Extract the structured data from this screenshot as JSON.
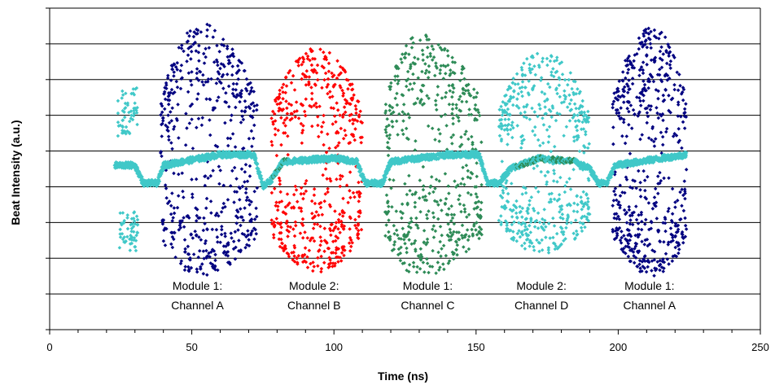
{
  "chart_data": {
    "type": "scatter",
    "title": "",
    "xlabel": "Time (ns)",
    "ylabel": "Beat Intensity (a.u.)",
    "xlim": [
      0,
      250
    ],
    "ylim": [
      0,
      9
    ],
    "x_ticks": [
      "0",
      "50",
      "100",
      "150",
      "200",
      "250"
    ],
    "x_tick_values": [
      0,
      50,
      100,
      150,
      200,
      250
    ],
    "y_tick_labels_shown": false,
    "grid": "horizontal",
    "legend": "none",
    "colors": {
      "channel_a": "#000080",
      "channel_b": "#ff0000",
      "channel_c": "#2e8b57",
      "channel_d": "#40c8c8",
      "beat_trace": "#40c8c8"
    },
    "bursts": [
      {
        "channel": "Channel D",
        "color": "#40c8c8",
        "x_range": [
          24,
          31
        ],
        "y_range": [
          2.2,
          7.2
        ]
      },
      {
        "channel": "Channel A",
        "color": "#000080",
        "x_range": [
          39,
          73
        ],
        "y_range": [
          1.5,
          8.6
        ],
        "peak_x": 53
      },
      {
        "channel": "Channel B",
        "color": "#ff0000",
        "x_range": [
          78,
          110
        ],
        "y_range": [
          1.6,
          7.9
        ],
        "peak_x": 94
      },
      {
        "channel": "Channel C",
        "color": "#2e8b57",
        "x_range": [
          118,
          152
        ],
        "y_range": [
          1.5,
          8.3
        ],
        "peak_x": 130
      },
      {
        "channel": "Channel D",
        "color": "#40c8c8",
        "x_range": [
          158,
          190
        ],
        "y_range": [
          2.1,
          7.8
        ],
        "peak_x": 173
      },
      {
        "channel": "Channel A",
        "color": "#000080",
        "x_range": [
          198,
          224
        ],
        "y_range": [
          1.5,
          8.5
        ],
        "peak_x": 212
      }
    ],
    "beat_trace": [
      {
        "x": 23,
        "y": 4.6
      },
      {
        "x": 30,
        "y": 4.6
      },
      {
        "x": 33,
        "y": 4.1
      },
      {
        "x": 38,
        "y": 4.1
      },
      {
        "x": 40,
        "y": 4.6
      },
      {
        "x": 60,
        "y": 4.9
      },
      {
        "x": 72,
        "y": 4.9
      },
      {
        "x": 75,
        "y": 4.0
      },
      {
        "x": 78,
        "y": 4.2
      },
      {
        "x": 82,
        "y": 4.7
      },
      {
        "x": 100,
        "y": 4.8
      },
      {
        "x": 108,
        "y": 4.7
      },
      {
        "x": 111,
        "y": 4.1
      },
      {
        "x": 117,
        "y": 4.1
      },
      {
        "x": 120,
        "y": 4.7
      },
      {
        "x": 140,
        "y": 4.9
      },
      {
        "x": 151,
        "y": 4.9
      },
      {
        "x": 154,
        "y": 4.1
      },
      {
        "x": 158,
        "y": 4.1
      },
      {
        "x": 162,
        "y": 4.5
      },
      {
        "x": 172,
        "y": 4.8
      },
      {
        "x": 185,
        "y": 4.7
      },
      {
        "x": 190,
        "y": 4.5
      },
      {
        "x": 193,
        "y": 4.1
      },
      {
        "x": 196,
        "y": 4.1
      },
      {
        "x": 199,
        "y": 4.6
      },
      {
        "x": 224,
        "y": 4.9
      }
    ],
    "annotations": [
      {
        "line1": "Module 1:",
        "line2": "Channel A",
        "x": 52
      },
      {
        "line1": "Module 2:",
        "line2": "Channel B",
        "x": 93
      },
      {
        "line1": "Module 1:",
        "line2": "Channel C",
        "x": 133
      },
      {
        "line1": "Module 2:",
        "line2": "Channel D",
        "x": 173
      },
      {
        "line1": "Module 1:",
        "line2": "Channel A",
        "x": 211
      }
    ]
  }
}
